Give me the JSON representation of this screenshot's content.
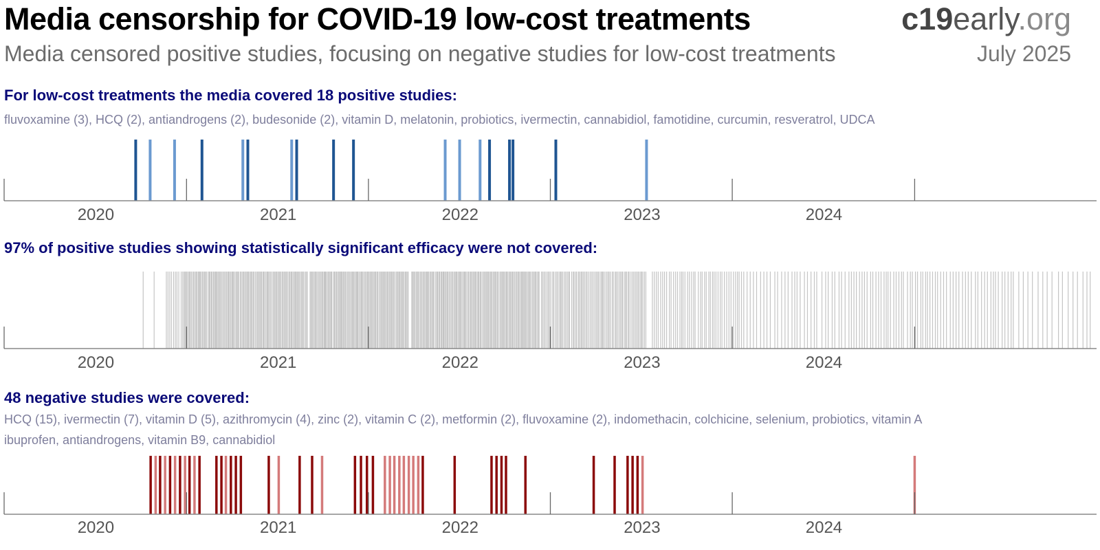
{
  "header": {
    "title": "Media censorship for COVID-19 low-cost treatments",
    "brand_bold": "c19",
    "brand_mid": "early",
    "brand_tld": ".org",
    "subtitle": "Media censored positive studies, focusing on negative studies for low-cost treatments",
    "date": "July 2025"
  },
  "colors": {
    "heading": "#0a0a78",
    "positive_dark": "#1f5592",
    "positive_light": "#6b9ad0",
    "uncovered": "#c4c4c4",
    "negative_dark": "#8b0a0a",
    "negative_light": "#d47a7a",
    "axis": "#888888"
  },
  "chart_data": [
    {
      "type": "timeline",
      "heading": "For low-cost treatments the media covered 18 positive studies:",
      "list": "fluvoxamine (3), HCQ (2), antiandrogens (2), budesonide (2), vitamin D, melatonin, probiotics, ivermectin, cannabidiol, famotidine, curcumin, resveratrol, UDCA",
      "x_range": [
        "2019-07-01",
        "2025-07-01"
      ],
      "x_ticks": [
        "2020",
        "2021",
        "2022",
        "2023",
        "2024"
      ],
      "events": [
        {
          "date": "2020-03-21",
          "shade": "dark"
        },
        {
          "date": "2020-04-19",
          "shade": "light"
        },
        {
          "date": "2020-06-07",
          "shade": "light"
        },
        {
          "date": "2020-08-01",
          "shade": "dark"
        },
        {
          "date": "2020-10-22",
          "shade": "light"
        },
        {
          "date": "2020-11-01",
          "shade": "dark"
        },
        {
          "date": "2021-01-28",
          "shade": "light"
        },
        {
          "date": "2021-02-07",
          "shade": "dark"
        },
        {
          "date": "2021-04-22",
          "shade": "dark"
        },
        {
          "date": "2021-06-01",
          "shade": "dark"
        },
        {
          "date": "2021-12-02",
          "shade": "light"
        },
        {
          "date": "2021-12-31",
          "shade": "light"
        },
        {
          "date": "2022-02-10",
          "shade": "light"
        },
        {
          "date": "2022-03-01",
          "shade": "dark"
        },
        {
          "date": "2022-04-10",
          "shade": "dark"
        },
        {
          "date": "2022-04-17",
          "shade": "dark"
        },
        {
          "date": "2022-07-12",
          "shade": "dark"
        },
        {
          "date": "2023-01-10",
          "shade": "light"
        }
      ]
    },
    {
      "type": "timeline",
      "heading": "97% of positive studies showing statistically significant efficacy were not covered:",
      "x_range": [
        "2019-07-01",
        "2025-07-01"
      ],
      "x_ticks": [
        "2020",
        "2021",
        "2022",
        "2023",
        "2024"
      ],
      "density": [
        {
          "from": "2020-04-05",
          "to": "2020-04-05",
          "count": 1
        },
        {
          "from": "2020-04-27",
          "to": "2020-04-27",
          "count": 1
        },
        {
          "from": "2020-05-20",
          "to": "2020-06-25",
          "count": 10
        },
        {
          "from": "2020-06-25",
          "to": "2021-03-01",
          "count": 115
        },
        {
          "from": "2021-03-05",
          "to": "2021-09-20",
          "count": 95
        },
        {
          "from": "2021-09-25",
          "to": "2022-06-10",
          "count": 120
        },
        {
          "from": "2022-06-12",
          "to": "2023-01-10",
          "count": 78
        },
        {
          "from": "2023-01-20",
          "to": "2023-07-25",
          "count": 45
        },
        {
          "from": "2023-07-28",
          "to": "2024-02-15",
          "count": 30
        },
        {
          "from": "2024-02-18",
          "to": "2024-09-05",
          "count": 38
        },
        {
          "from": "2024-09-08",
          "to": "2025-01-20",
          "count": 22
        },
        {
          "from": "2025-01-22",
          "to": "2025-06-25",
          "count": 16
        }
      ]
    },
    {
      "type": "timeline",
      "heading": "48 negative studies were covered:",
      "list_line1": "HCQ (15), ivermectin (7), vitamin D (5), azithromycin (4), zinc (2), vitamin C (2), metformin (2), fluvoxamine (2), indomethacin, colchicine, selenium, probiotics, vitamin A",
      "list_line2": "ibuprofen, antiandrogens, vitamin B9, cannabidiol",
      "x_range": [
        "2019-07-01",
        "2025-07-01"
      ],
      "x_ticks": [
        "2020",
        "2021",
        "2022",
        "2023",
        "2024"
      ],
      "events": [
        {
          "date": "2020-04-20",
          "shade": "dark"
        },
        {
          "date": "2020-04-30",
          "shade": "light"
        },
        {
          "date": "2020-05-09",
          "shade": "dark"
        },
        {
          "date": "2020-05-19",
          "shade": "light"
        },
        {
          "date": "2020-05-29",
          "shade": "dark"
        },
        {
          "date": "2020-06-08",
          "shade": "light"
        },
        {
          "date": "2020-06-18",
          "shade": "dark"
        },
        {
          "date": "2020-06-28",
          "shade": "light"
        },
        {
          "date": "2020-07-07",
          "shade": "dark"
        },
        {
          "date": "2020-07-17",
          "shade": "light"
        },
        {
          "date": "2020-07-27",
          "shade": "dark"
        },
        {
          "date": "2020-08-30",
          "shade": "dark"
        },
        {
          "date": "2020-09-09",
          "shade": "dark"
        },
        {
          "date": "2020-09-18",
          "shade": "light"
        },
        {
          "date": "2020-09-28",
          "shade": "dark"
        },
        {
          "date": "2020-10-08",
          "shade": "dark"
        },
        {
          "date": "2020-10-18",
          "shade": "dark"
        },
        {
          "date": "2020-12-13",
          "shade": "dark"
        },
        {
          "date": "2021-01-02",
          "shade": "light"
        },
        {
          "date": "2021-02-13",
          "shade": "dark"
        },
        {
          "date": "2021-03-10",
          "shade": "dark"
        },
        {
          "date": "2021-03-30",
          "shade": "light"
        },
        {
          "date": "2021-06-04",
          "shade": "dark"
        },
        {
          "date": "2021-06-16",
          "shade": "dark"
        },
        {
          "date": "2021-06-28",
          "shade": "dark"
        },
        {
          "date": "2021-07-10",
          "shade": "dark"
        },
        {
          "date": "2021-08-03",
          "shade": "light"
        },
        {
          "date": "2021-08-13",
          "shade": "light"
        },
        {
          "date": "2021-08-22",
          "shade": "light"
        },
        {
          "date": "2021-09-01",
          "shade": "light"
        },
        {
          "date": "2021-09-10",
          "shade": "light"
        },
        {
          "date": "2021-09-20",
          "shade": "light"
        },
        {
          "date": "2021-09-29",
          "shade": "light"
        },
        {
          "date": "2021-10-09",
          "shade": "light"
        },
        {
          "date": "2021-10-18",
          "shade": "dark"
        },
        {
          "date": "2021-12-21",
          "shade": "dark"
        },
        {
          "date": "2022-03-05",
          "shade": "dark"
        },
        {
          "date": "2022-03-15",
          "shade": "dark"
        },
        {
          "date": "2022-03-25",
          "shade": "dark"
        },
        {
          "date": "2022-04-03",
          "shade": "dark"
        },
        {
          "date": "2022-05-12",
          "shade": "dark"
        },
        {
          "date": "2022-09-26",
          "shade": "dark"
        },
        {
          "date": "2022-11-07",
          "shade": "dark"
        },
        {
          "date": "2022-12-03",
          "shade": "dark"
        },
        {
          "date": "2022-12-13",
          "shade": "dark"
        },
        {
          "date": "2022-12-23",
          "shade": "dark"
        },
        {
          "date": "2023-01-02",
          "shade": "light"
        },
        {
          "date": "2024-07-01",
          "shade": "light"
        }
      ]
    }
  ]
}
